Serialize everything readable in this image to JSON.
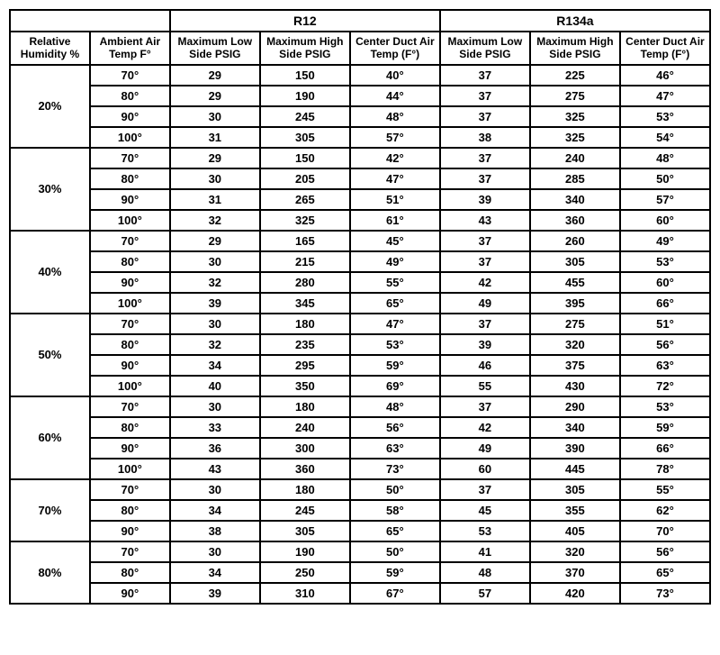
{
  "table": {
    "type": "table",
    "background_color": "#ffffff",
    "border_color": "#000000",
    "text_color": "#000000",
    "font_family": "Arial",
    "header_fontsize": 13,
    "cell_fontsize": 13,
    "refrigerant_groups": [
      "R12",
      "R134a"
    ],
    "column_headers": {
      "humidity": "Relative Humidity %",
      "ambient": "Ambient Air Temp F°",
      "low_side": "Maximum Low Side PSIG",
      "high_side": "Maximum High Side PSIG",
      "duct_air": "Center Duct Air Temp (F°)"
    },
    "groups": [
      {
        "humidity": "20%",
        "rows": [
          {
            "temp": "70°",
            "r12_low": "29",
            "r12_high": "150",
            "r12_duct": "40°",
            "r134_low": "37",
            "r134_high": "225",
            "r134_duct": "46°"
          },
          {
            "temp": "80°",
            "r12_low": "29",
            "r12_high": "190",
            "r12_duct": "44°",
            "r134_low": "37",
            "r134_high": "275",
            "r134_duct": "47°"
          },
          {
            "temp": "90°",
            "r12_low": "30",
            "r12_high": "245",
            "r12_duct": "48°",
            "r134_low": "37",
            "r134_high": "325",
            "r134_duct": "53°"
          },
          {
            "temp": "100°",
            "r12_low": "31",
            "r12_high": "305",
            "r12_duct": "57°",
            "r134_low": "38",
            "r134_high": "325",
            "r134_duct": "54°"
          }
        ]
      },
      {
        "humidity": "30%",
        "rows": [
          {
            "temp": "70°",
            "r12_low": "29",
            "r12_high": "150",
            "r12_duct": "42°",
            "r134_low": "37",
            "r134_high": "240",
            "r134_duct": "48°"
          },
          {
            "temp": "80°",
            "r12_low": "30",
            "r12_high": "205",
            "r12_duct": "47°",
            "r134_low": "37",
            "r134_high": "285",
            "r134_duct": "50°"
          },
          {
            "temp": "90°",
            "r12_low": "31",
            "r12_high": "265",
            "r12_duct": "51°",
            "r134_low": "39",
            "r134_high": "340",
            "r134_duct": "57°"
          },
          {
            "temp": "100°",
            "r12_low": "32",
            "r12_high": "325",
            "r12_duct": "61°",
            "r134_low": "43",
            "r134_high": "360",
            "r134_duct": "60°"
          }
        ]
      },
      {
        "humidity": "40%",
        "rows": [
          {
            "temp": "70°",
            "r12_low": "29",
            "r12_high": "165",
            "r12_duct": "45°",
            "r134_low": "37",
            "r134_high": "260",
            "r134_duct": "49°"
          },
          {
            "temp": "80°",
            "r12_low": "30",
            "r12_high": "215",
            "r12_duct": "49°",
            "r134_low": "37",
            "r134_high": "305",
            "r134_duct": "53°"
          },
          {
            "temp": "90°",
            "r12_low": "32",
            "r12_high": "280",
            "r12_duct": "55°",
            "r134_low": "42",
            "r134_high": "455",
            "r134_duct": "60°"
          },
          {
            "temp": "100°",
            "r12_low": "39",
            "r12_high": "345",
            "r12_duct": "65°",
            "r134_low": "49",
            "r134_high": "395",
            "r134_duct": "66°"
          }
        ]
      },
      {
        "humidity": "50%",
        "rows": [
          {
            "temp": "70°",
            "r12_low": "30",
            "r12_high": "180",
            "r12_duct": "47°",
            "r134_low": "37",
            "r134_high": "275",
            "r134_duct": "51°"
          },
          {
            "temp": "80°",
            "r12_low": "32",
            "r12_high": "235",
            "r12_duct": "53°",
            "r134_low": "39",
            "r134_high": "320",
            "r134_duct": "56°"
          },
          {
            "temp": "90°",
            "r12_low": "34",
            "r12_high": "295",
            "r12_duct": "59°",
            "r134_low": "46",
            "r134_high": "375",
            "r134_duct": "63°"
          },
          {
            "temp": "100°",
            "r12_low": "40",
            "r12_high": "350",
            "r12_duct": "69°",
            "r134_low": "55",
            "r134_high": "430",
            "r134_duct": "72°"
          }
        ]
      },
      {
        "humidity": "60%",
        "rows": [
          {
            "temp": "70°",
            "r12_low": "30",
            "r12_high": "180",
            "r12_duct": "48°",
            "r134_low": "37",
            "r134_high": "290",
            "r134_duct": "53°"
          },
          {
            "temp": "80°",
            "r12_low": "33",
            "r12_high": "240",
            "r12_duct": "56°",
            "r134_low": "42",
            "r134_high": "340",
            "r134_duct": "59°"
          },
          {
            "temp": "90°",
            "r12_low": "36",
            "r12_high": "300",
            "r12_duct": "63°",
            "r134_low": "49",
            "r134_high": "390",
            "r134_duct": "66°"
          },
          {
            "temp": "100°",
            "r12_low": "43",
            "r12_high": "360",
            "r12_duct": "73°",
            "r134_low": "60",
            "r134_high": "445",
            "r134_duct": "78°"
          }
        ]
      },
      {
        "humidity": "70%",
        "rows": [
          {
            "temp": "70°",
            "r12_low": "30",
            "r12_high": "180",
            "r12_duct": "50°",
            "r134_low": "37",
            "r134_high": "305",
            "r134_duct": "55°"
          },
          {
            "temp": "80°",
            "r12_low": "34",
            "r12_high": "245",
            "r12_duct": "58°",
            "r134_low": "45",
            "r134_high": "355",
            "r134_duct": "62°"
          },
          {
            "temp": "90°",
            "r12_low": "38",
            "r12_high": "305",
            "r12_duct": "65°",
            "r134_low": "53",
            "r134_high": "405",
            "r134_duct": "70°"
          }
        ]
      },
      {
        "humidity": "80%",
        "rows": [
          {
            "temp": "70°",
            "r12_low": "30",
            "r12_high": "190",
            "r12_duct": "50°",
            "r134_low": "41",
            "r134_high": "320",
            "r134_duct": "56°"
          },
          {
            "temp": "80°",
            "r12_low": "34",
            "r12_high": "250",
            "r12_duct": "59°",
            "r134_low": "48",
            "r134_high": "370",
            "r134_duct": "65°"
          },
          {
            "temp": "90°",
            "r12_low": "39",
            "r12_high": "310",
            "r12_duct": "67°",
            "r134_low": "57",
            "r134_high": "420",
            "r134_duct": "73°"
          }
        ]
      }
    ]
  }
}
